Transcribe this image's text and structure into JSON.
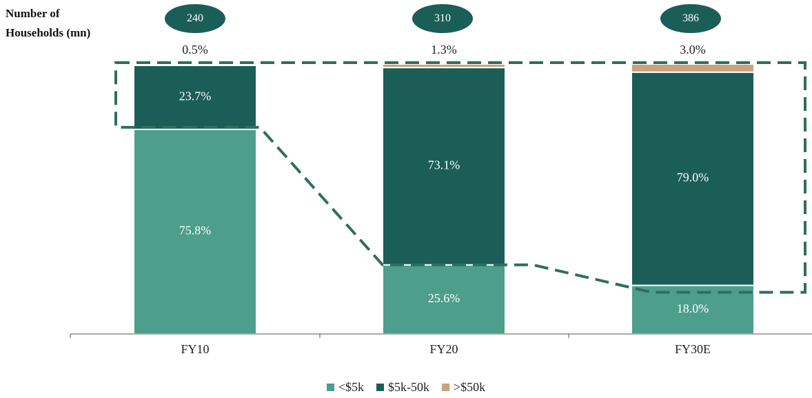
{
  "header": {
    "label_line1": "Number of",
    "label_line2": "Households (mn)"
  },
  "households": [
    "240",
    "310",
    "386"
  ],
  "chart_data": {
    "type": "bar",
    "stacked": true,
    "categories": [
      "FY10",
      "FY20",
      "FY30E"
    ],
    "series": [
      {
        "name": "<$5k",
        "values": [
          75.8,
          25.6,
          18.0
        ],
        "color": "#4d9e8c"
      },
      {
        "name": "$5k-50k",
        "values": [
          23.7,
          73.1,
          79.0
        ],
        "color": "#1b5e58"
      },
      {
        "name": ">$50k",
        "values": [
          0.5,
          1.3,
          3.0
        ],
        "color": "#c9a27e"
      }
    ],
    "data_labels": [
      [
        "75.8%",
        "25.6%",
        "18.0%"
      ],
      [
        "23.7%",
        "73.1%",
        "79.0%"
      ],
      [
        "0.5%",
        "1.3%",
        "3.0%"
      ]
    ],
    "ylim": [
      0,
      100
    ],
    "grid": false,
    "legend_position": "bottom-center",
    "annotation": "dashed outline around the $5k-50k and >$50k segments"
  },
  "colors": {
    "dashed_outline": "#2f6e5f",
    "axis": "#555555",
    "label_dark": "#222222",
    "label_light": "#ffffff"
  }
}
